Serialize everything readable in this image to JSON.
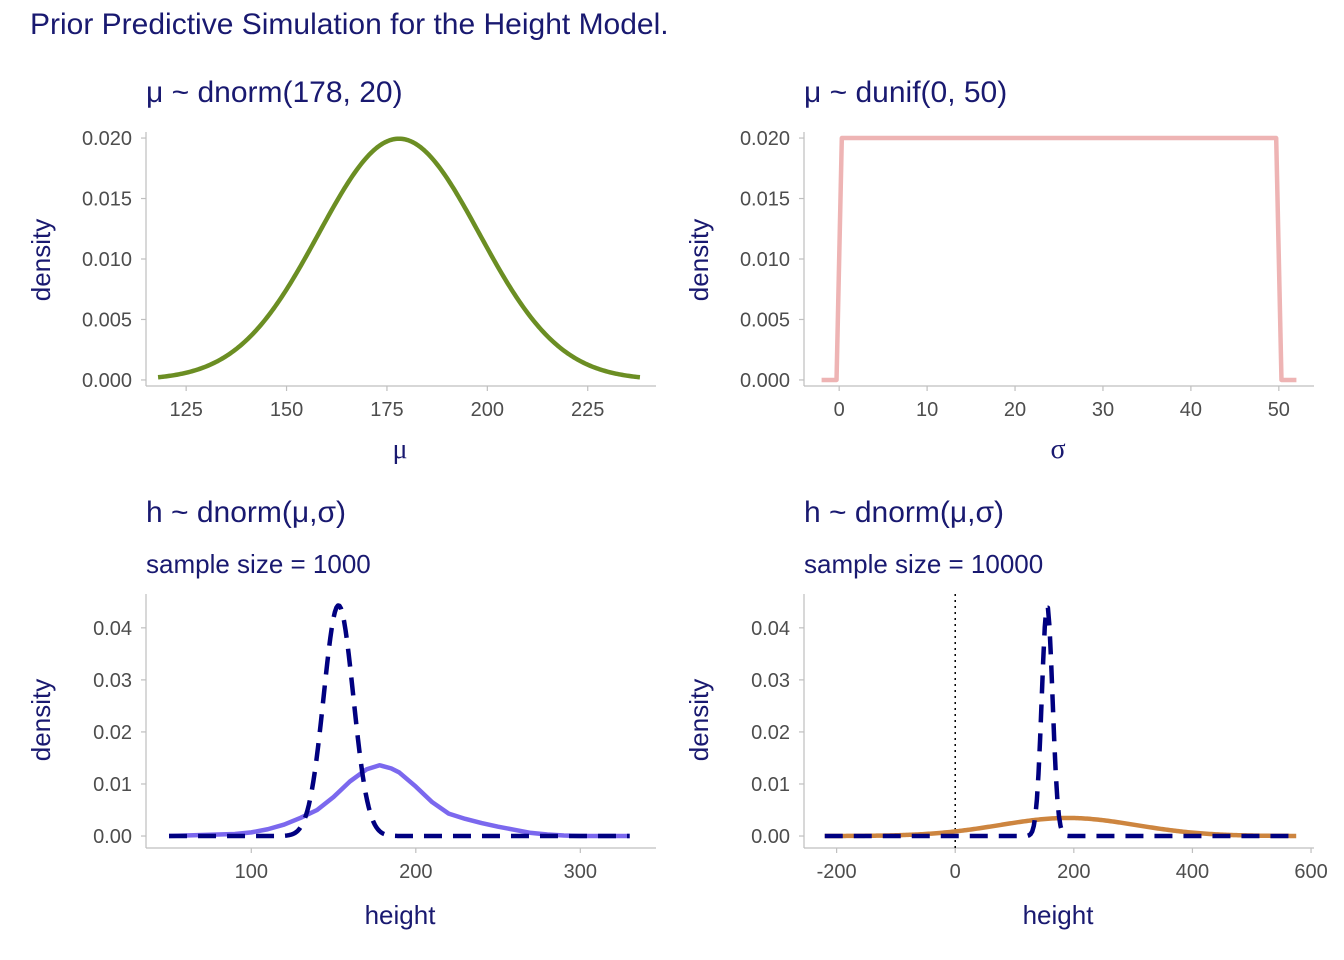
{
  "title": "Prior Predictive Simulation for the Height Model.",
  "colors": {
    "text": "#191970",
    "axis": "#bfbfbf",
    "tick_text": "#4d4d4d"
  },
  "chart_data": [
    {
      "id": "mu-prior",
      "type": "line",
      "title": "μ ~ dnorm(178, 20)",
      "subtitle": "",
      "xlabel": "μ",
      "ylabel": "density",
      "xlim": [
        115,
        242
      ],
      "ylim": [
        -0.0005,
        0.0205
      ],
      "xticks": [
        125,
        150,
        175,
        200,
        225
      ],
      "yticks": [
        0.0,
        0.005,
        0.01,
        0.015,
        0.02
      ],
      "ytick_labels": [
        "0.000",
        "0.005",
        "0.010",
        "0.015",
        "0.020"
      ],
      "series": [
        {
          "kind": "normal",
          "mean": 178,
          "sd": 20,
          "x_range": [
            118,
            238
          ],
          "color": "#6b8e23",
          "style": "solid"
        }
      ]
    },
    {
      "id": "sigma-prior",
      "type": "line",
      "title": "μ ~ dunif(0, 50)",
      "subtitle": "",
      "xlabel": "σ",
      "ylabel": "density",
      "xlim": [
        -4,
        54
      ],
      "ylim": [
        -0.0005,
        0.0205
      ],
      "xticks": [
        0,
        10,
        20,
        30,
        40,
        50
      ],
      "yticks": [
        0.0,
        0.005,
        0.01,
        0.015,
        0.02
      ],
      "ytick_labels": [
        "0.000",
        "0.005",
        "0.010",
        "0.015",
        "0.020"
      ],
      "series": [
        {
          "kind": "points",
          "x": [
            -2,
            -0.3,
            0.3,
            49.7,
            50.3,
            52
          ],
          "y": [
            0,
            0,
            0.02,
            0.02,
            0,
            0
          ],
          "color": "#eeb4b4",
          "style": "solid"
        }
      ]
    },
    {
      "id": "h-prior-1000",
      "type": "line",
      "title": "h ~ dnorm(μ,σ)",
      "subtitle": "sample size = 1000",
      "xlabel": "height",
      "ylabel": "density",
      "xlim": [
        36,
        346
      ],
      "ylim": [
        -0.0023,
        0.0465
      ],
      "xticks": [
        100,
        200,
        300
      ],
      "yticks": [
        0.0,
        0.01,
        0.02,
        0.03,
        0.04
      ],
      "ytick_labels": [
        "0.00",
        "0.01",
        "0.02",
        "0.03",
        "0.04"
      ],
      "series": [
        {
          "kind": "points",
          "color": "#7b68ee",
          "style": "solid",
          "x": [
            50,
            70,
            90,
            100,
            110,
            120,
            130,
            140,
            150,
            160,
            170,
            178,
            185,
            190,
            200,
            210,
            220,
            230,
            240,
            250,
            260,
            270,
            280,
            290,
            300,
            310,
            320,
            330
          ],
          "y": [
            0,
            0.0002,
            0.0004,
            0.0007,
            0.0013,
            0.0022,
            0.0035,
            0.005,
            0.0075,
            0.0105,
            0.0128,
            0.0136,
            0.013,
            0.0122,
            0.0095,
            0.0065,
            0.0043,
            0.0033,
            0.0025,
            0.0018,
            0.0012,
            0.0006,
            0.0003,
            0.0001,
            0,
            0,
            0,
            0
          ]
        },
        {
          "kind": "normal",
          "mean": 153,
          "sd": 9,
          "x_range": [
            50,
            330
          ],
          "color": "#000080",
          "style": "dashed"
        }
      ]
    },
    {
      "id": "h-prior-10000",
      "type": "line",
      "title": "h ~ dnorm(μ,σ)",
      "subtitle": "sample size = 10000",
      "xlabel": "height",
      "ylabel": "density",
      "xlim": [
        -255,
        605
      ],
      "ylim": [
        -0.0023,
        0.0465
      ],
      "xticks": [
        -200,
        0,
        200,
        400,
        600
      ],
      "yticks": [
        0.0,
        0.01,
        0.02,
        0.03,
        0.04
      ],
      "ytick_labels": [
        "0.00",
        "0.01",
        "0.02",
        "0.03",
        "0.04"
      ],
      "vline": {
        "x": 0,
        "color": "#000000",
        "style": "dotted"
      },
      "series": [
        {
          "kind": "normal",
          "mean": 190,
          "sd": 115,
          "x_range": [
            -220,
            575
          ],
          "color": "#cd853f",
          "style": "solid"
        },
        {
          "kind": "normal",
          "mean": 155,
          "sd": 9,
          "x_range": [
            -220,
            575
          ],
          "color": "#000080",
          "style": "dashed"
        }
      ]
    }
  ]
}
